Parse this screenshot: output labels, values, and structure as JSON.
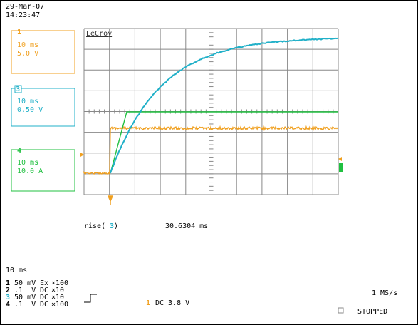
{
  "header": {
    "date": "29-Mar-07",
    "time": "14:23:47"
  },
  "brand": "LeCroy",
  "channels": [
    {
      "number": "1",
      "timebase": "10 ms",
      "scale": "5.0 V"
    },
    {
      "number": "3",
      "timebase": "10 ms",
      "scale": "0.50 V"
    },
    {
      "number": "4",
      "timebase": "10 ms",
      "scale": "10.0 A"
    }
  ],
  "measurement": {
    "label_start": "rise(",
    "channel": "3",
    "label_end": ")",
    "value": "30.6304 ms"
  },
  "timebase": "10 ms",
  "settings": [
    {
      "channel": "1",
      "volts": "50 mV",
      "coupling": "Ex",
      "probe": "×100"
    },
    {
      "channel": "2",
      "volts": ".1  V",
      "coupling": "DC",
      "probe": "×10"
    },
    {
      "channel": "3",
      "volts": "50 mV",
      "coupling": "DC",
      "probe": "×10"
    },
    {
      "channel": "4",
      "volts": ".1  V",
      "coupling": "DC",
      "probe": "×100"
    }
  ],
  "trigger": {
    "channel": "1",
    "level": "DC 3.8 V"
  },
  "sample_rate": "1 MS/s",
  "status": "STOPPED"
}
